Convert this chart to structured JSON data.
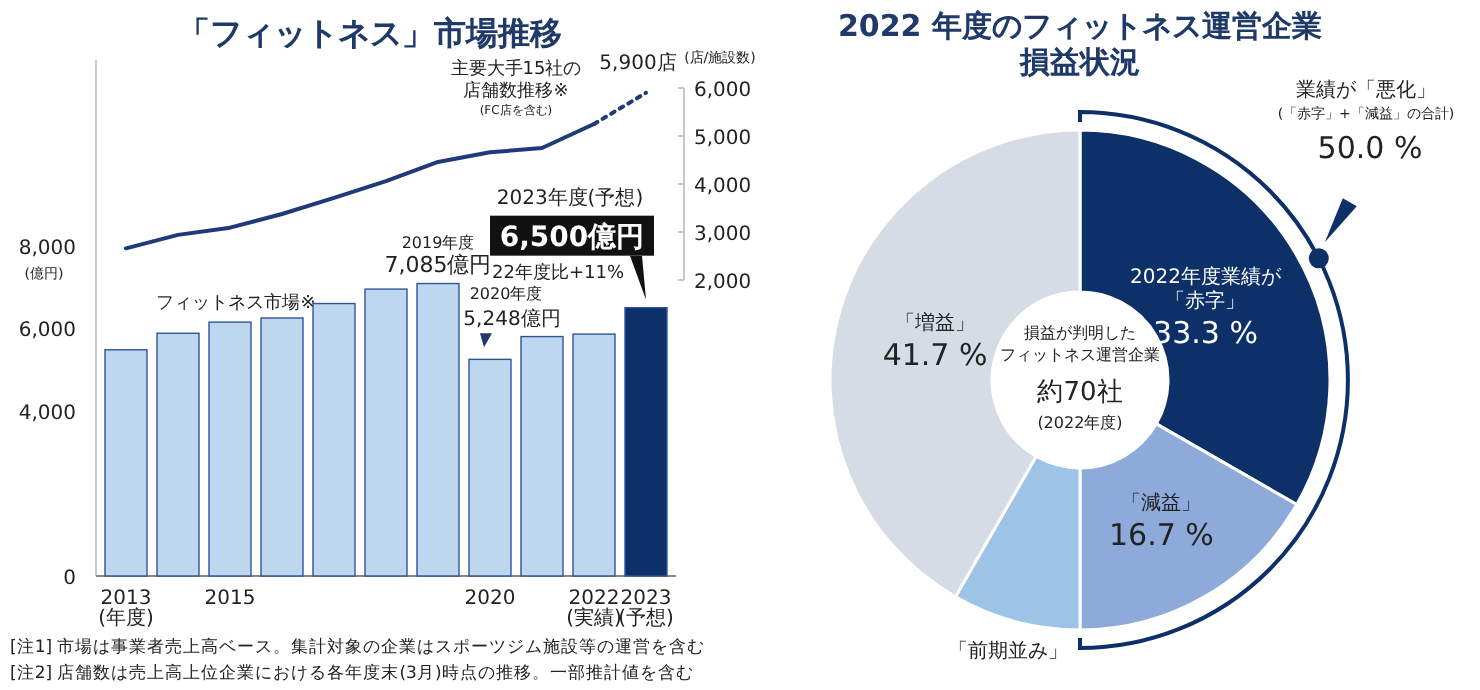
{
  "chart_data": [
    {
      "type": "bar",
      "title": "「フィットネス」市場推移",
      "categories": [
        "2013\n(年度)",
        null,
        "2015",
        null,
        null,
        null,
        null,
        "2020",
        null,
        "2022\n(実績)",
        "2023\n(予想)"
      ],
      "ylim": [
        0,
        12500
      ],
      "yticks": [
        0,
        {
          "value": 4000,
          "label": "4,000"
        },
        {
          "value": 6000,
          "label": "6,000"
        },
        {
          "value": 8000,
          "label": "8,000"
        }
      ],
      "ylabel": "(億円)",
      "y2label": "(店/施設数)",
      "y2lim": [
        2000,
        6000
      ],
      "y2ticks": [
        {
          "value": 2000,
          "label": "2,000"
        },
        {
          "value": 3000,
          "label": "3,000"
        },
        {
          "value": 4000,
          "label": "4,000"
        },
        {
          "value": 5000,
          "label": "5,000"
        },
        {
          "value": 6000,
          "label": "6,000"
        }
      ],
      "series": [
        {
          "type": "bar",
          "name": "フィットネス市場※",
          "colors": [
            "#bdd7ee",
            "#bdd7ee",
            "#bdd7ee",
            "#bdd7ee",
            "#bdd7ee",
            "#bdd7ee",
            "#bdd7ee",
            "#bdd7ee",
            "#bdd7ee",
            "#bdd7ee",
            "#0d3068"
          ],
          "values": [
            5480,
            5880,
            6150,
            6250,
            6600,
            6950,
            7085,
            5248,
            5800,
            5860,
            6500
          ],
          "value_labels": [
            null,
            null,
            null,
            null,
            null,
            null,
            "7,085億円",
            "5,248億円",
            null,
            null,
            "6,500億円"
          ]
        },
        {
          "type": "line",
          "axis": "y2",
          "name": "主要大手15社の店舗数推移※",
          "color": "#1f3a78",
          "values": [
            2660,
            2940,
            3090,
            3375,
            3710,
            4060,
            4460,
            4660,
            4750,
            5250,
            null
          ]
        },
        {
          "type": "line",
          "axis": "y2",
          "color": "#1f3a78",
          "line_style": "dotted",
          "values": [
            null,
            null,
            null,
            null,
            null,
            null,
            null,
            null,
            null,
            5250,
            5900
          ],
          "value_labels": [
            null,
            null,
            null,
            null,
            null,
            null,
            null,
            null,
            null,
            null,
            "5,900店"
          ]
        }
      ],
      "annotations": [
        "(FC店を含む)",
        {
          "text": "2019年度",
          "y": 7085
        },
        "2023年度(予想)",
        "22年度比+11%",
        "2020年度",
        "[注1] 市場は事業者売上高ベース。集計対象の企業はスポーツジム施設等の運営を含む",
        "[注2] 店舗数は売上高上位企業における各年度末(3月)時点の推移。一部推計値を含む"
      ]
    },
    {
      "type": "donut",
      "title": "2022 年度のフィットネス運営企業損益状況",
      "categories": [
        "2022年度業績が「赤字」",
        "「減益」",
        "「前期並み」",
        "「増益」"
      ],
      "values": [
        33.3,
        16.7,
        8.3,
        41.7
      ],
      "colors": [
        "#0d3068",
        "#8eaadb",
        "#9dc3e6",
        "#d6dce5"
      ],
      "value_labels": [
        "33.3 %",
        "16.7 %",
        null,
        "41.7 %"
      ],
      "annotations": [
        "業績が「悪化」",
        "(「赤字」+「減益」の合計)",
        "50.0 %",
        "損益が判明した",
        "フィットネス運営企業",
        "約70社",
        "(2022年度)"
      ]
    }
  ]
}
